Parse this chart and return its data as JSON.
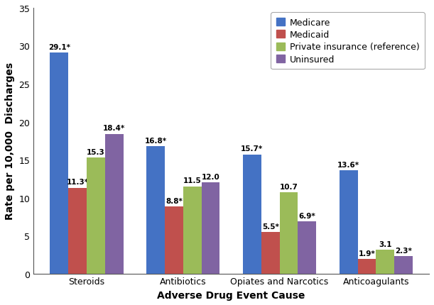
{
  "categories": [
    "Steroids",
    "Antibiotics",
    "Opiates and Narcotics",
    "Anticoagulants"
  ],
  "payers": [
    "Medicare",
    "Medicaid",
    "Private insurance (reference)",
    "Uninsured"
  ],
  "values": {
    "Medicare": [
      29.1,
      16.8,
      15.7,
      13.6
    ],
    "Medicaid": [
      11.3,
      8.8,
      5.5,
      1.9
    ],
    "Private insurance (reference)": [
      15.3,
      11.5,
      10.7,
      3.1
    ],
    "Uninsured": [
      18.4,
      12.0,
      6.9,
      2.3
    ]
  },
  "labels": {
    "Medicare": [
      "29.1*",
      "16.8*",
      "15.7*",
      "13.6*"
    ],
    "Medicaid": [
      "11.3*",
      "8.8*",
      "5.5*",
      "1.9*"
    ],
    "Private insurance (reference)": [
      "15.3",
      "11.5",
      "10.7",
      "3.1"
    ],
    "Uninsured": [
      "18.4*",
      "12.0",
      "6.9*",
      "2.3*"
    ]
  },
  "colors": {
    "Medicare": "#4472C4",
    "Medicaid": "#C0504D",
    "Private insurance (reference)": "#9BBB59",
    "Uninsured": "#8064A2"
  },
  "xlabel": "Adverse Drug Event Cause",
  "ylabel": "Rate per 10,000  Discharges",
  "ylim": [
    0,
    35
  ],
  "yticks": [
    0,
    5,
    10,
    15,
    20,
    25,
    30,
    35
  ],
  "bar_width": 0.19,
  "label_fontsize": 7.5,
  "axis_label_fontsize": 10,
  "tick_fontsize": 9,
  "legend_fontsize": 9
}
